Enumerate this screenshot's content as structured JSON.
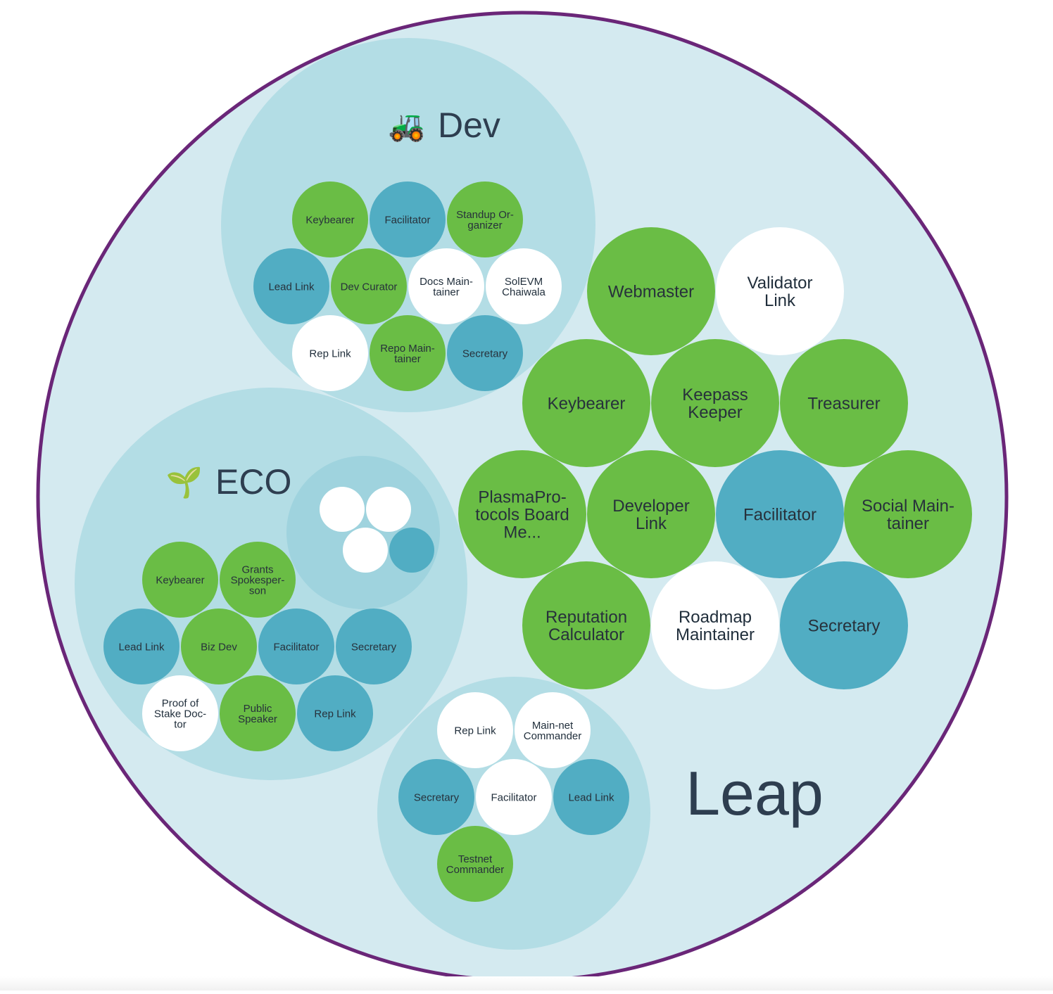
{
  "colors": {
    "green": "#6abd45",
    "blue": "#51adc3",
    "white": "#ffffff",
    "outer_fill": "#d4eaf0",
    "outer_border": "#6a2678",
    "sub_circle": "#b3dde5",
    "nested_circle": "#9fd3de",
    "text_dark": "#2e3e50"
  },
  "root": {
    "label": "Leap"
  },
  "circles": [
    {
      "id": "dev",
      "label": "Dev",
      "emoji": "🚜",
      "roles": [
        {
          "label": "Keybearer",
          "color": "green"
        },
        {
          "label": "Facilitator",
          "color": "blue"
        },
        {
          "label": "Standup Or-\nganizer",
          "color": "green"
        },
        {
          "label": "Lead Link",
          "color": "blue"
        },
        {
          "label": "Dev Curator",
          "color": "green"
        },
        {
          "label": "Docs Main-\ntainer",
          "color": "white"
        },
        {
          "label": "SolEVM\nChaiwala",
          "color": "white"
        },
        {
          "label": "Rep Link",
          "color": "white"
        },
        {
          "label": "Repo Main-\ntainer",
          "color": "green"
        },
        {
          "label": "Secretary",
          "color": "blue"
        }
      ]
    },
    {
      "id": "eco",
      "label": "ECO",
      "emoji": "🌱",
      "roles": [
        {
          "label": "Keybearer",
          "color": "green"
        },
        {
          "label": "Grants\nSpokesper-\nson",
          "color": "green"
        },
        {
          "label": "Lead Link",
          "color": "blue"
        },
        {
          "label": "Biz Dev",
          "color": "green"
        },
        {
          "label": "Facilitator",
          "color": "blue"
        },
        {
          "label": "Secretary",
          "color": "blue"
        },
        {
          "label": "Proof of\nStake Doc-\ntor",
          "color": "white"
        },
        {
          "label": "Public\nSpeaker",
          "color": "green"
        },
        {
          "label": "Rep Link",
          "color": "blue"
        }
      ],
      "sub_circle": {
        "roles": [
          "white",
          "white",
          "white",
          "blue"
        ]
      }
    },
    {
      "id": "unnamed",
      "label": "",
      "roles": [
        {
          "label": "Rep Link",
          "color": "white"
        },
        {
          "label": "Main-net\nCommander",
          "color": "white"
        },
        {
          "label": "Secretary",
          "color": "blue"
        },
        {
          "label": "Facilitator",
          "color": "white"
        },
        {
          "label": "Lead Link",
          "color": "blue"
        },
        {
          "label": "Testnet\nCommander",
          "color": "green"
        }
      ]
    }
  ],
  "root_roles": [
    {
      "label": "Webmaster",
      "color": "green"
    },
    {
      "label": "Validator\nLink",
      "color": "white"
    },
    {
      "label": "Keybearer",
      "color": "green"
    },
    {
      "label": "Keepass\nKeeper",
      "color": "green"
    },
    {
      "label": "Treasurer",
      "color": "green"
    },
    {
      "label": "PlasmaPro-\ntocols Board\nMe...",
      "color": "green"
    },
    {
      "label": "Developer\nLink",
      "color": "green"
    },
    {
      "label": "Facilitator",
      "color": "blue"
    },
    {
      "label": "Social Main-\ntainer",
      "color": "green"
    },
    {
      "label": "Reputation\nCalculator",
      "color": "green"
    },
    {
      "label": "Roadmap\nMaintainer",
      "color": "white"
    },
    {
      "label": "Secretary",
      "color": "blue"
    }
  ]
}
